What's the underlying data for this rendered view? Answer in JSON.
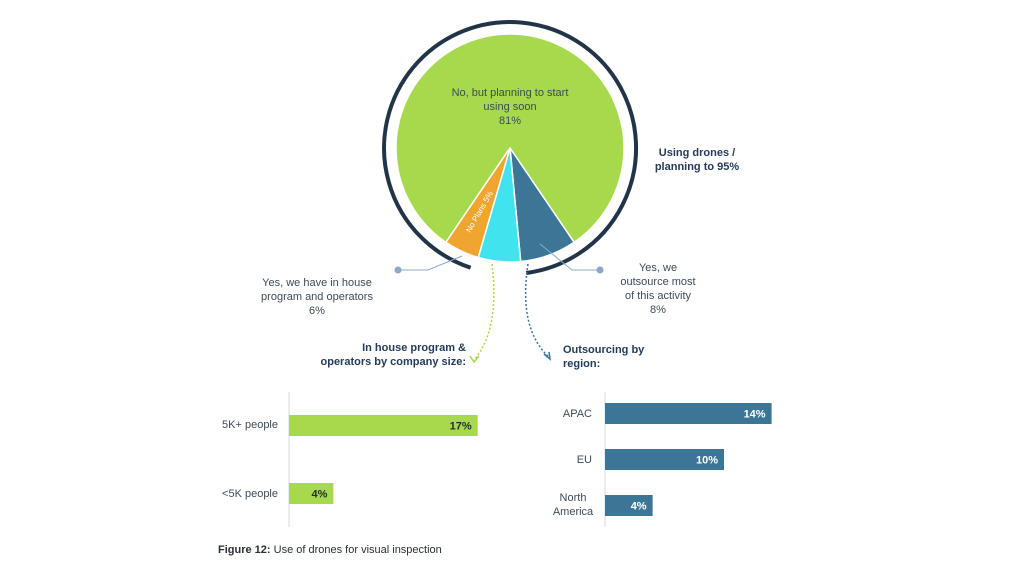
{
  "chart_data": [
    {
      "type": "pie",
      "slices": [
        {
          "label": "No, but planning to start using soon",
          "value": 81,
          "value_label": "81%",
          "color": "#a7d94c"
        },
        {
          "label": "Yes, we outsource most of this activity",
          "value": 8,
          "value_label": "8%",
          "color": "#3b7697"
        },
        {
          "label": "Yes, we have in house program and operators",
          "value": 6,
          "value_label": "6%",
          "color": "#40e3ee"
        },
        {
          "label": "No Plans",
          "value": 5,
          "value_label": "5%",
          "color": "#f0a530"
        }
      ],
      "annotation": "Using drones / planning to 95%",
      "labels": {
        "main_line1": "No, but planning to start",
        "main_line2": "using soon",
        "main_pct": "81%",
        "noplans": "No Plans 5%",
        "inhouse_line1": "Yes, we have in house",
        "inhouse_line2": "program and operators",
        "inhouse_pct": "6%",
        "outsource_line1": "Yes, we",
        "outsource_line2": "outsource most",
        "outsource_line3": "of this activity",
        "outsource_pct": "8%",
        "annotation_line1": "Using drones /",
        "annotation_line2": "planning to 95%"
      }
    },
    {
      "type": "bar",
      "orientation": "horizontal",
      "title_line1": "In house program &",
      "title_line2": "operators by company size:",
      "categories": [
        "5K+ people",
        "<5K people"
      ],
      "values": [
        17,
        4
      ],
      "value_labels": [
        "17%",
        "4%"
      ],
      "color": "#a7d94c"
    },
    {
      "type": "bar",
      "orientation": "horizontal",
      "title_line1": "Outsourcing by",
      "title_line2": "region:",
      "categories": [
        "APAC",
        "EU",
        "North America"
      ],
      "category_lines": [
        [
          "APAC"
        ],
        [
          "EU"
        ],
        [
          "North",
          "America"
        ]
      ],
      "values": [
        14,
        10,
        4
      ],
      "value_labels": [
        "14%",
        "10%",
        "4%"
      ],
      "color": "#3b7697"
    }
  ],
  "caption": {
    "prefix": "Figure 12:",
    "text": " Use of drones for visual inspection"
  }
}
